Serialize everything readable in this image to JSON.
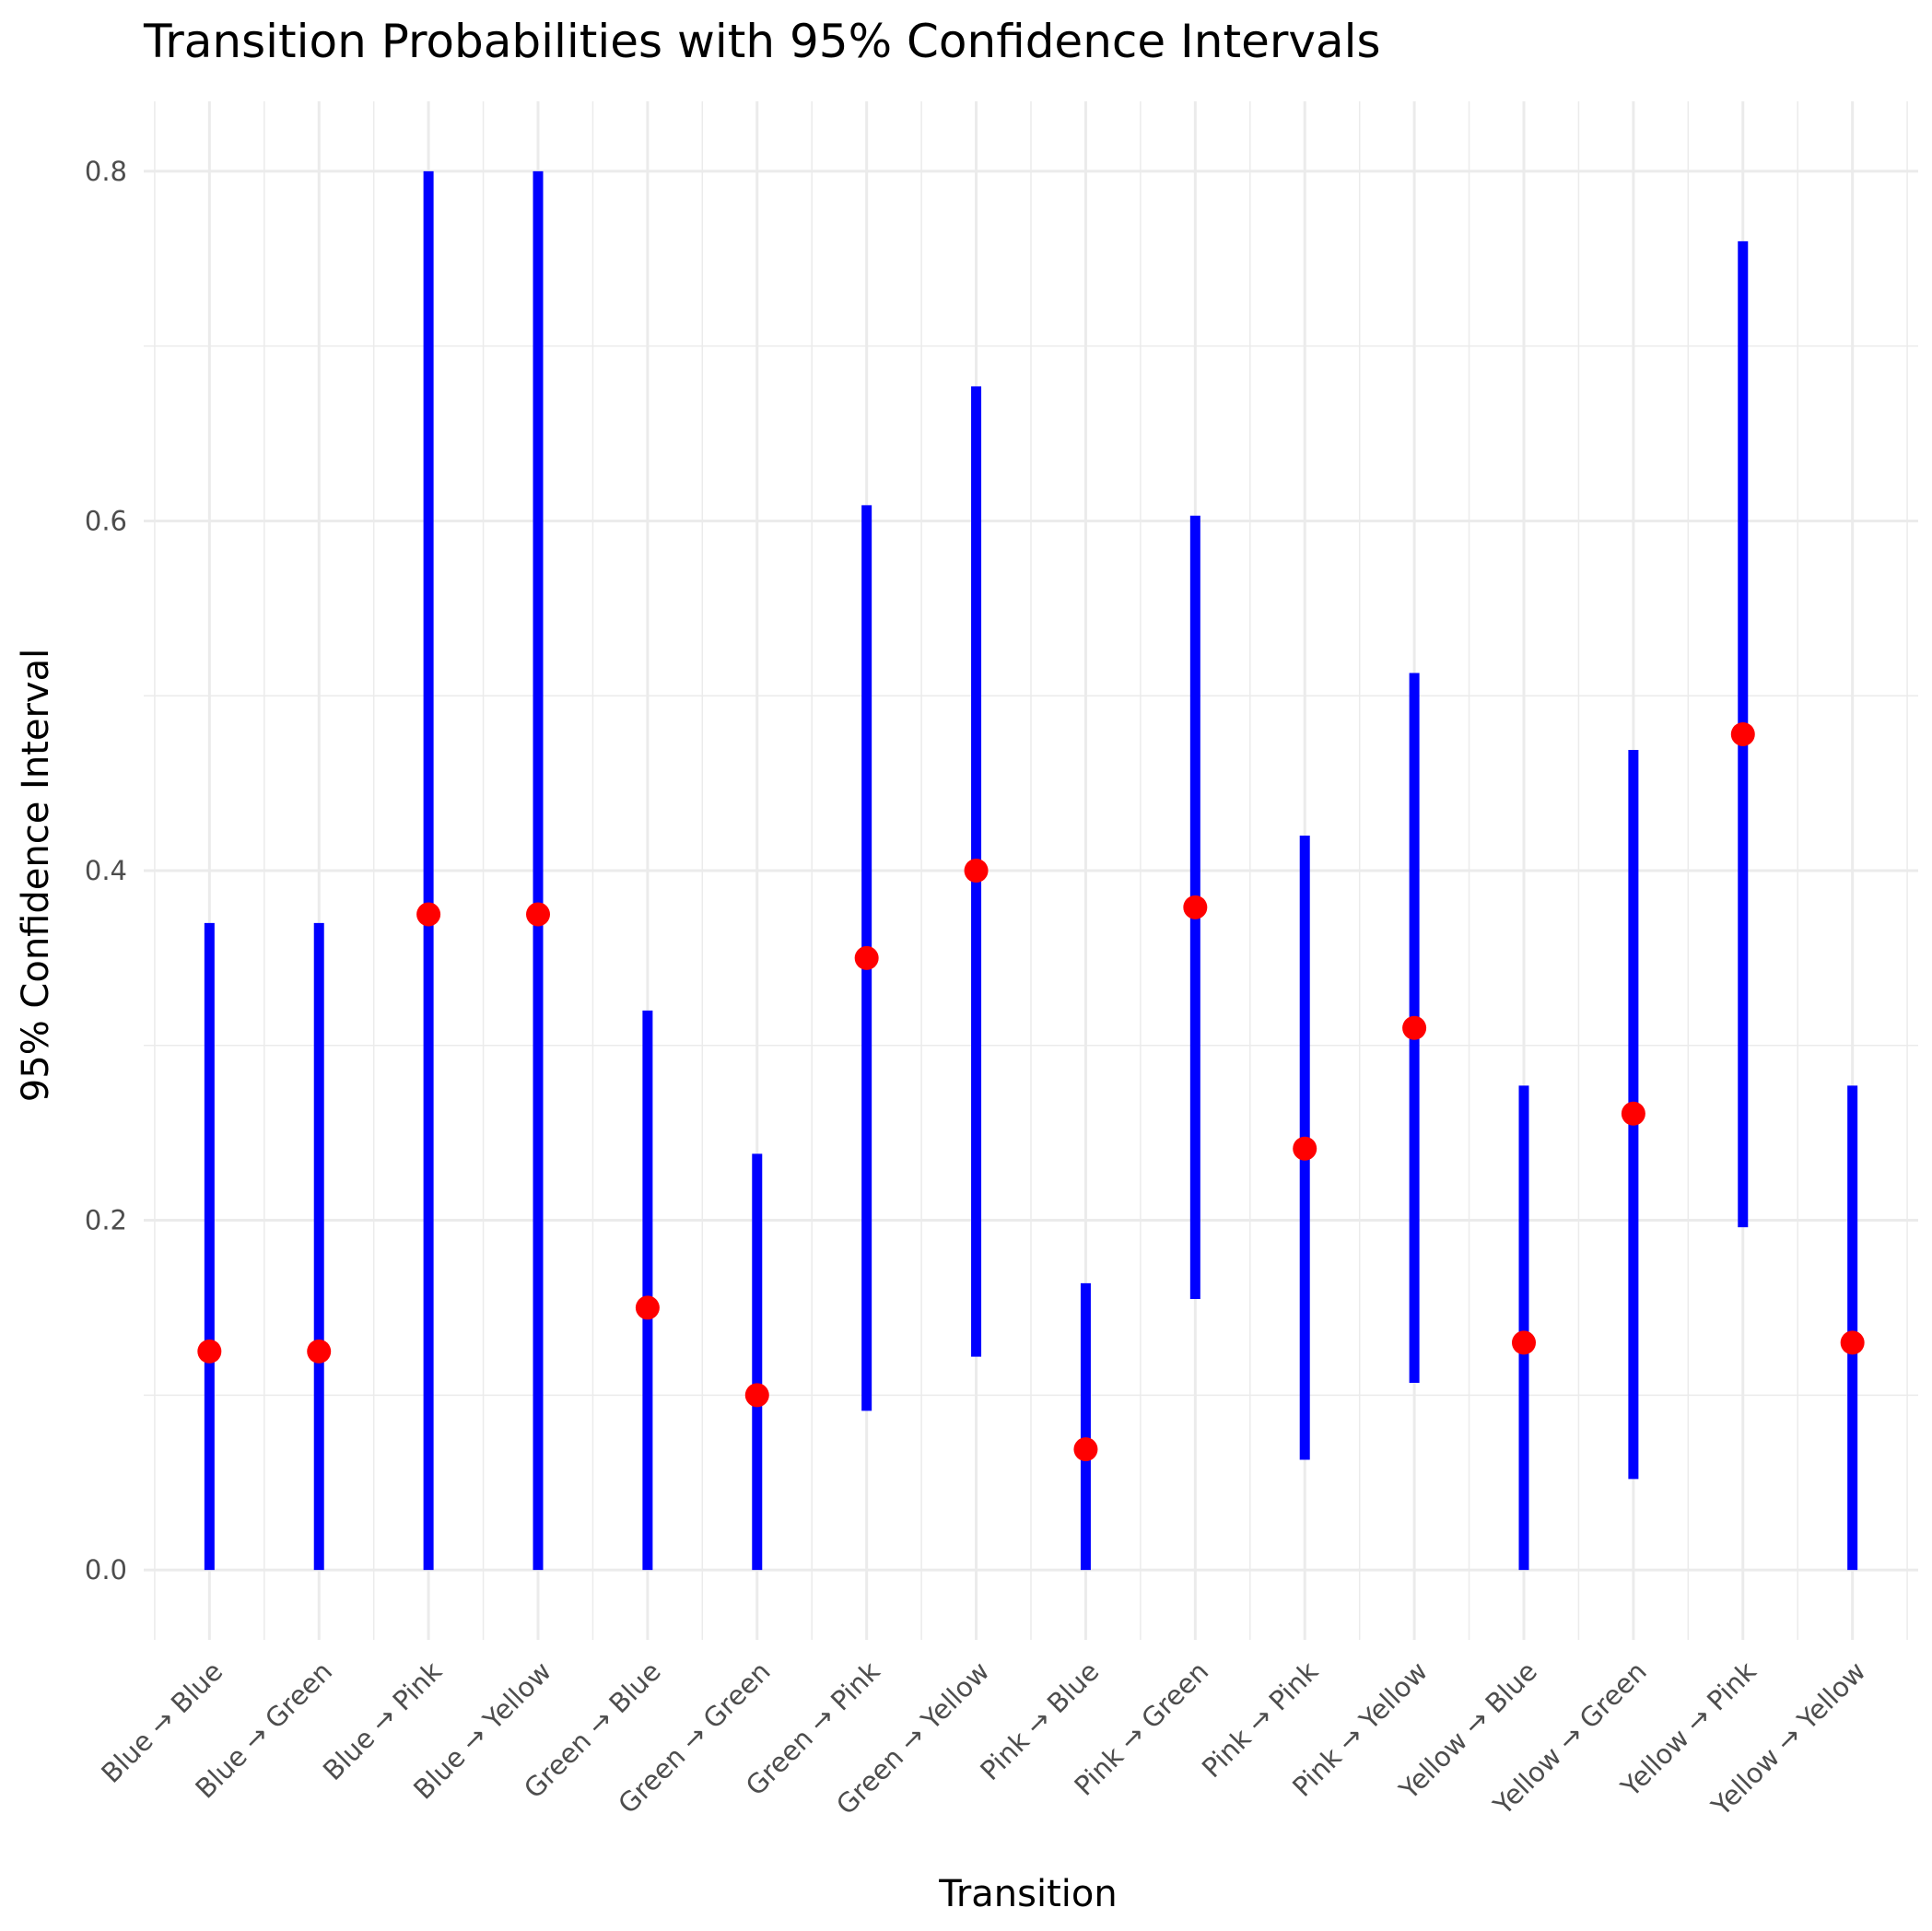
{
  "chart_data": {
    "type": "errorbar",
    "title": "Transition Probabilities with 95% Confidence Intervals",
    "xlabel": "Transition",
    "ylabel": "95% Confidence Interval",
    "ylim": [
      -0.04,
      0.84
    ],
    "yticks": [
      "0.0",
      "0.2",
      "0.4",
      "0.6",
      "0.8"
    ],
    "ytick_values": [
      0.0,
      0.2,
      0.4,
      0.6,
      0.8
    ],
    "grid": true,
    "legend": "none",
    "colors": {
      "interval": "#0000ff",
      "point": "#ff0000",
      "grid": "#ebebeb"
    },
    "categories": [
      "Blue → Blue",
      "Blue → Green",
      "Blue → Pink",
      "Blue → Yellow",
      "Green → Blue",
      "Green → Green",
      "Green → Pink",
      "Green → Yellow",
      "Pink → Blue",
      "Pink → Green",
      "Pink → Pink",
      "Pink → Yellow",
      "Yellow → Blue",
      "Yellow → Green",
      "Yellow → Pink",
      "Yellow → Yellow"
    ],
    "estimates": [
      0.125,
      0.125,
      0.375,
      0.375,
      0.15,
      0.1,
      0.35,
      0.4,
      0.069,
      0.379,
      0.241,
      0.31,
      0.13,
      0.261,
      0.478,
      0.13
    ],
    "lower": [
      0.0,
      0.0,
      0.0,
      0.0,
      0.0,
      0.0,
      0.091,
      0.122,
      0.0,
      0.155,
      0.063,
      0.107,
      0.0,
      0.052,
      0.196,
      0.0
    ],
    "upper": [
      0.37,
      0.37,
      0.8,
      0.8,
      0.32,
      0.238,
      0.609,
      0.677,
      0.164,
      0.603,
      0.42,
      0.513,
      0.277,
      0.469,
      0.76,
      0.277
    ]
  }
}
